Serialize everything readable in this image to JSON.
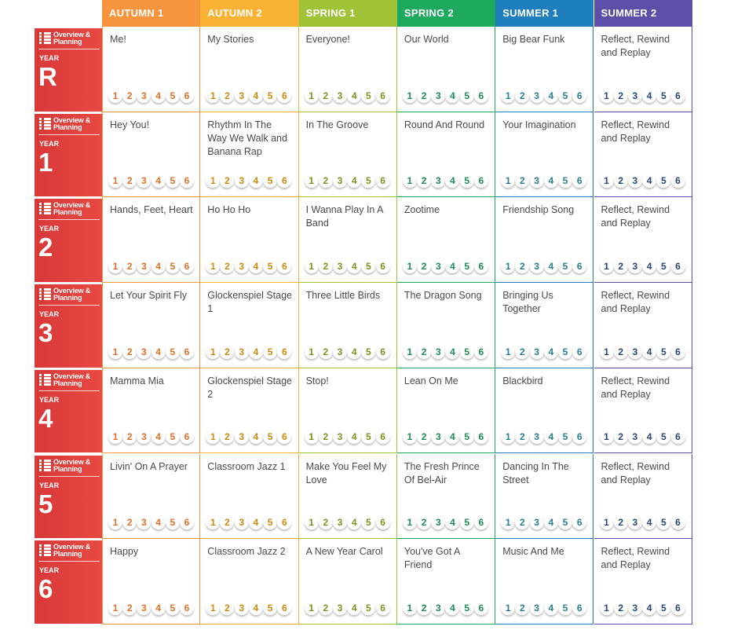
{
  "terms": [
    {
      "label": "AUTUMN 1",
      "color": "#f7943e",
      "text_color": "#e0702a"
    },
    {
      "label": "AUTUMN 2",
      "color": "#f9b233",
      "text_color": "#c98a10"
    },
    {
      "label": "SPRING 1",
      "color": "#9fc237",
      "text_color": "#7a9420"
    },
    {
      "label": "SPRING 2",
      "color": "#1da95e",
      "text_color": "#1e8c54"
    },
    {
      "label": "SUMMER 1",
      "color": "#1f7fbe",
      "text_color": "#2a7d8c"
    },
    {
      "label": "SUMMER 2",
      "color": "#5b4fa8",
      "text_color": "#2c4770"
    }
  ],
  "overview_label": "Overview & Planning",
  "year_label": "YEAR",
  "lesson_numbers": [
    "1",
    "2",
    "3",
    "4",
    "5",
    "6"
  ],
  "years": [
    {
      "year": "R",
      "units": [
        "Me!",
        "My Stories",
        "Everyone!",
        "Our World",
        "Big Bear Funk",
        "Reflect, Rewind and Replay"
      ]
    },
    {
      "year": "1",
      "units": [
        "Hey You!",
        "Rhythm In The Way We Walk and Banana Rap",
        "In The Groove",
        "Round And Round",
        "Your Imagination",
        "Reflect, Rewind and Replay"
      ]
    },
    {
      "year": "2",
      "units": [
        "Hands, Feet, Heart",
        "Ho Ho Ho",
        "I Wanna Play In A Band",
        "Zootime",
        "Friendship Song",
        "Reflect, Rewind and Replay"
      ]
    },
    {
      "year": "3",
      "units": [
        "Let Your Spirit Fly",
        "Glockenspiel Stage 1",
        "Three Little Birds",
        "The Dragon Song",
        "Bringing Us Together",
        "Reflect, Rewind and Replay"
      ]
    },
    {
      "year": "4",
      "units": [
        "Mamma Mia",
        "Glockenspiel Stage 2",
        "Stop!",
        "Lean On Me",
        "Blackbird",
        "Reflect, Rewind and Replay"
      ]
    },
    {
      "year": "5",
      "units": [
        "Livin' On A Prayer",
        "Classroom Jazz 1",
        "Make You Feel My Love",
        "The Fresh Prince Of Bel-Air",
        "Dancing In The Street",
        "Reflect, Rewind and Replay"
      ]
    },
    {
      "year": "6",
      "units": [
        "Happy",
        "Classroom Jazz 2",
        "A New Year Carol",
        "You've Got A Friend",
        "Music And Me",
        "Reflect, Rewind and Replay"
      ]
    }
  ]
}
